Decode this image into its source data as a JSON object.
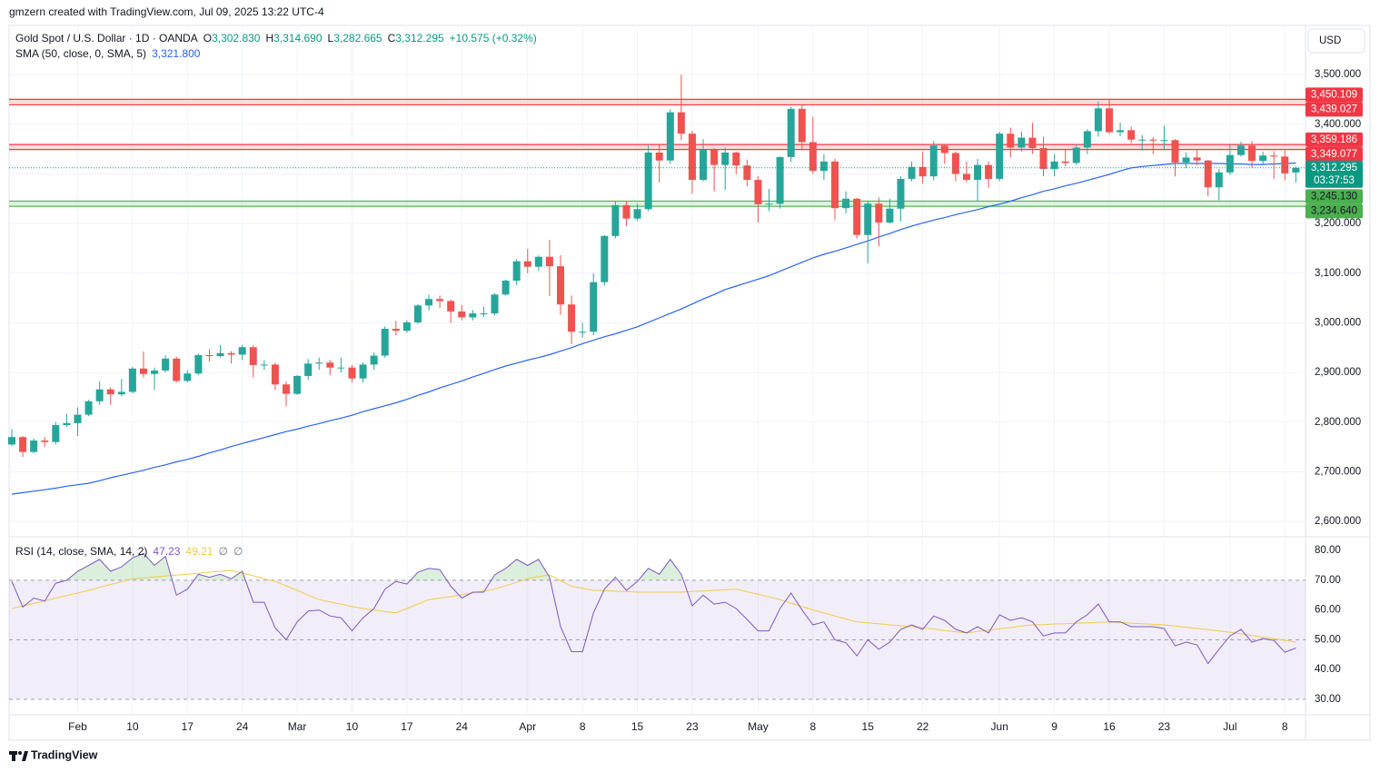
{
  "header": "gmzern created with TradingView.com, Jul 09, 2025 13:22 UTC-4",
  "footer": "TradingView",
  "chart_data": {
    "type": "candlestick",
    "legend": {
      "symbol": "Gold Spot / U.S. Dollar · 1D · OANDA",
      "ohlc": [
        {
          "key": "O",
          "value": "3,302.830"
        },
        {
          "key": "H",
          "value": "3,314.690"
        },
        {
          "key": "L",
          "value": "3,282.665"
        },
        {
          "key": "C",
          "value": "3,312.295"
        }
      ],
      "change": "+10.575 (+0.32%)"
    },
    "currency": "USD",
    "x": [
      null,
      null,
      null,
      null,
      null,
      null,
      "Feb",
      null,
      null,
      null,
      null,
      "10",
      null,
      null,
      null,
      null,
      "17",
      null,
      null,
      null,
      null,
      "24",
      null,
      null,
      null,
      null,
      "Mar",
      null,
      null,
      null,
      null,
      "10",
      null,
      null,
      null,
      null,
      "17",
      null,
      null,
      null,
      null,
      "24",
      null,
      null,
      null,
      null,
      null,
      "Apr",
      null,
      null,
      null,
      null,
      "8",
      null,
      null,
      null,
      null,
      "15",
      null,
      null,
      null,
      null,
      "23",
      null,
      null,
      null,
      null,
      null,
      "May",
      null,
      null,
      null,
      null,
      "8",
      null,
      null,
      null,
      null,
      "15",
      null,
      null,
      null,
      null,
      "22",
      null,
      null,
      null,
      null,
      null,
      null,
      "Jun",
      null,
      null,
      null,
      null,
      "9",
      null,
      null,
      null,
      null,
      "16",
      null,
      null,
      null,
      null,
      "23",
      null,
      null,
      null,
      null,
      null,
      "Jul",
      null,
      null,
      null,
      null,
      "8",
      null
    ],
    "open": [
      2755,
      2770,
      2740,
      2763,
      2760,
      2794,
      2798,
      2815,
      2842,
      2866,
      2856,
      2861,
      2908,
      2897,
      2904,
      2928,
      2883,
      2898,
      2935,
      2933,
      2939,
      2936,
      2951,
      2915,
      2916,
      2876,
      2857,
      2893,
      2918,
      2920,
      2910,
      2910,
      2888,
      2916,
      2934,
      2988,
      2984,
      3001,
      3035,
      3048,
      3044,
      3023,
      3011,
      3019,
      3019,
      3057,
      3085,
      3124,
      3113,
      3133,
      3114,
      3037,
      2982,
      2982,
      3082,
      3175,
      3237,
      3210,
      3229,
      3343,
      3327,
      3424,
      3381,
      3288,
      3349,
      3318,
      3343,
      3317,
      3288,
      3239,
      3240,
      3334,
      3431,
      3364,
      3306,
      3325,
      3231,
      3250,
      3177,
      3240,
      3202,
      3230,
      3290,
      3314,
      3295,
      3357,
      3342,
      3300,
      3288,
      3318,
      3290,
      3381,
      3353,
      3373,
      3352,
      3310,
      3325,
      3322,
      3353,
      3386,
      3432,
      3384,
      3388,
      3369,
      3369,
      3367,
      3368,
      3323,
      3333,
      3327,
      3273,
      3303,
      3338,
      3357,
      3326,
      3337,
      3335,
      3302.83
    ],
    "high": [
      2786,
      2772,
      2767,
      2770,
      2800,
      2817,
      2830,
      2845,
      2882,
      2870,
      2887,
      2911,
      2942,
      2910,
      2935,
      2932,
      2905,
      2938,
      2947,
      2955,
      2943,
      2956,
      2955,
      2925,
      2920,
      2882,
      2895,
      2927,
      2930,
      2925,
      2930,
      2915,
      2920,
      2940,
      2993,
      3004,
      3005,
      3038,
      3057,
      3055,
      3047,
      3036,
      3026,
      3033,
      3060,
      3087,
      3128,
      3149,
      3136,
      3167,
      3136,
      3055,
      3000,
      3100,
      3177,
      3245,
      3245,
      3240,
      3357,
      3358,
      3430,
      3500,
      3387,
      3370,
      3352,
      3353,
      3345,
      3329,
      3295,
      3270,
      3335,
      3435,
      3438,
      3415,
      3340,
      3330,
      3265,
      3252,
      3245,
      3253,
      3250,
      3295,
      3325,
      3345,
      3366,
      3360,
      3345,
      3325,
      3330,
      3325,
      3385,
      3393,
      3385,
      3403,
      3375,
      3340,
      3350,
      3360,
      3390,
      3446,
      3452,
      3403,
      3395,
      3378,
      3374,
      3397,
      3370,
      3343,
      3350,
      3328,
      3310,
      3358,
      3365,
      3366,
      3345,
      3346,
      3347,
      3314.69
    ],
    "low": [
      2752,
      2730,
      2737,
      2750,
      2755,
      2790,
      2772,
      2812,
      2835,
      2835,
      2852,
      2858,
      2890,
      2865,
      2900,
      2880,
      2880,
      2895,
      2922,
      2930,
      2918,
      2925,
      2890,
      2905,
      2865,
      2832,
      2855,
      2885,
      2905,
      2895,
      2900,
      2880,
      2880,
      2905,
      2930,
      2975,
      2980,
      2998,
      3025,
      3030,
      3000,
      3005,
      3005,
      3012,
      3015,
      3055,
      3076,
      3100,
      3105,
      3054,
      3016,
      2957,
      2970,
      2975,
      3075,
      3170,
      3195,
      3205,
      3225,
      3283,
      3320,
      3368,
      3260,
      3285,
      3265,
      3268,
      3300,
      3275,
      3202,
      3225,
      3230,
      3324,
      3350,
      3300,
      3288,
      3207,
      3220,
      3170,
      3120,
      3154,
      3200,
      3205,
      3285,
      3280,
      3287,
      3320,
      3285,
      3283,
      3245,
      3272,
      3285,
      3333,
      3345,
      3340,
      3295,
      3295,
      3315,
      3318,
      3340,
      3375,
      3380,
      3376,
      3362,
      3347,
      3340,
      3348,
      3295,
      3312,
      3317,
      3255,
      3247,
      3298,
      3335,
      3312,
      3320,
      3290,
      3287,
      3282.665
    ],
    "close": [
      2770,
      2740,
      2763,
      2760,
      2794,
      2798,
      2815,
      2842,
      2866,
      2856,
      2861,
      2908,
      2897,
      2904,
      2928,
      2883,
      2898,
      2935,
      2933,
      2939,
      2936,
      2951,
      2915,
      2916,
      2876,
      2857,
      2893,
      2918,
      2920,
      2910,
      2910,
      2888,
      2916,
      2934,
      2988,
      2984,
      3001,
      3035,
      3048,
      3044,
      3023,
      3011,
      3019,
      3019,
      3057,
      3085,
      3124,
      3113,
      3133,
      3114,
      3037,
      2982,
      2982,
      3082,
      3175,
      3237,
      3210,
      3229,
      3343,
      3327,
      3424,
      3381,
      3288,
      3349,
      3318,
      3343,
      3317,
      3288,
      3239,
      3240,
      3334,
      3431,
      3364,
      3306,
      3325,
      3231,
      3250,
      3177,
      3240,
      3202,
      3230,
      3290,
      3314,
      3295,
      3357,
      3342,
      3300,
      3288,
      3318,
      3290,
      3381,
      3353,
      3373,
      3352,
      3310,
      3325,
      3322,
      3353,
      3386,
      3432,
      3384,
      3388,
      3369,
      3369,
      3367,
      3368,
      3323,
      3333,
      3327,
      3273,
      3303,
      3338,
      3357,
      3326,
      3337,
      3335,
      3301,
      3312.295
    ],
    "up_color": "#26a69a",
    "down_color": "#ef5350",
    "ylim": [
      2571,
      3599
    ],
    "yticks": [
      {
        "value": 2600,
        "label": "2,600.000"
      },
      {
        "value": 2700,
        "label": "2,700.000"
      },
      {
        "value": 2800,
        "label": "2,800.000"
      },
      {
        "value": 2900,
        "label": "2,900.000"
      },
      {
        "value": 3000,
        "label": "3,000.000"
      },
      {
        "value": 3100,
        "label": "3,100.000"
      },
      {
        "value": 3200,
        "label": "3,200.000"
      },
      {
        "value": 3300,
        "label": "3,300.000"
      },
      {
        "value": 3400,
        "label": "3,400.000"
      },
      {
        "value": 3500,
        "label": "3,500.000"
      }
    ],
    "grid": true,
    "sma": {
      "name": "SMA (50, close, 0, SMA, 5)",
      "value_label": "3,321.800",
      "color": "#2962ff",
      "values": [
        2655,
        2658,
        2661,
        2664,
        2667,
        2671,
        2674,
        2677,
        2682,
        2688,
        2693,
        2698,
        2703,
        2709,
        2714,
        2720,
        2725,
        2731,
        2738,
        2744,
        2751,
        2757,
        2763,
        2769,
        2775,
        2781,
        2786,
        2792,
        2797,
        2803,
        2808,
        2814,
        2821,
        2827,
        2833,
        2839,
        2846,
        2854,
        2861,
        2869,
        2876,
        2883,
        2891,
        2898,
        2906,
        2913,
        2919,
        2925,
        2930,
        2936,
        2943,
        2950,
        2958,
        2965,
        2972,
        2978,
        2985,
        2992,
        3001,
        3010,
        3019,
        3028,
        3038,
        3048,
        3057,
        3067,
        3074,
        3081,
        3088,
        3095,
        3104,
        3113,
        3122,
        3131,
        3138,
        3144,
        3151,
        3158,
        3165,
        3173,
        3180,
        3188,
        3195,
        3201,
        3207,
        3212,
        3218,
        3223,
        3228,
        3234,
        3239,
        3245,
        3252,
        3258,
        3265,
        3270,
        3276,
        3281,
        3287,
        3293,
        3299,
        3306,
        3312,
        3315,
        3317,
        3319,
        3321,
        3321,
        3321,
        3321,
        3321,
        3320,
        3320,
        3319,
        3319,
        3320,
        3321,
        3321.8
      ]
    },
    "zones": [
      {
        "top": {
          "value": 3450.109,
          "label": "3,450.109"
        },
        "bottom": {
          "value": 3439.027,
          "label": "3,439.027"
        },
        "color": "#f23645",
        "text_color": "#ffffff"
      },
      {
        "top": {
          "value": 3359.186,
          "label": "3,359.186"
        },
        "bottom": {
          "value": 3349.077,
          "label": "3,349.077"
        },
        "color": "#f23645",
        "text_color": "#ffffff"
      },
      {
        "top": {
          "value": 3245.13,
          "label": "3,245.130"
        },
        "bottom": {
          "value": 3234.64,
          "label": "3,234.640"
        },
        "color": "#4caf50",
        "text_color": "#131722"
      }
    ],
    "last_price": {
      "value": 3312.295,
      "label": "3,312.295",
      "countdown": "03:37:53",
      "color": "#089981"
    },
    "rsi": {
      "name": "RSI (14, close, SMA, 14, 2)",
      "value_label": "47.23",
      "color": "#7e57c2",
      "ma_label": "49.21",
      "ma_color": "#f2c94c",
      "extra_labels": [
        "∅",
        "∅"
      ],
      "values": [
        69.6,
        61,
        64,
        63,
        69,
        70,
        73,
        75,
        77,
        73,
        74.5,
        77.5,
        79,
        75,
        78,
        65,
        67,
        72,
        71,
        72,
        70.5,
        73,
        62.6,
        62.6,
        54,
        50,
        56,
        59.6,
        60,
        58,
        57.4,
        53,
        57.4,
        60.5,
        67,
        69.6,
        68.7,
        72.7,
        74,
        73.6,
        68,
        64,
        66,
        66,
        71.8,
        74,
        77,
        75,
        77,
        71,
        54.4,
        46,
        46,
        59,
        67,
        71,
        66.6,
        69.6,
        74,
        72,
        77,
        72,
        61.4,
        65,
        62,
        62.6,
        60.5,
        56.8,
        53,
        53,
        60.5,
        65.7,
        60,
        55,
        56,
        50,
        49,
        44.6,
        50,
        46.8,
        49.2,
        53.5,
        55,
        53.5,
        58,
        56.5,
        53.5,
        52.3,
        54.4,
        52.3,
        58.4,
        56.5,
        57.4,
        56,
        51.3,
        52.3,
        52.3,
        56,
        58.4,
        62,
        56,
        56,
        54.4,
        54.4,
        54.4,
        53.8,
        48,
        49.2,
        48.3,
        42,
        46.8,
        51.3,
        53.5,
        49.2,
        50.4,
        49.8,
        45.8,
        47.23
      ],
      "ma_values": [
        60.5,
        61.4,
        62.2,
        63.1,
        64,
        64.9,
        65.7,
        66.6,
        67.6,
        68.6,
        69.5,
        70.5,
        70.8,
        71.1,
        71.4,
        71.7,
        72,
        72.3,
        72.7,
        73,
        73.3,
        72.4,
        71.5,
        70.5,
        69.6,
        68.1,
        66.6,
        65,
        63.5,
        62.7,
        62,
        61.2,
        60.5,
        60,
        59.5,
        59,
        60.5,
        62,
        63.5,
        64,
        64.5,
        65.1,
        65.8,
        66.4,
        67,
        68.2,
        69.3,
        70.5,
        71.2,
        71.8,
        69.9,
        68,
        67.3,
        66.6,
        66.5,
        66.3,
        66.2,
        66,
        66,
        66,
        66,
        66,
        66.2,
        66.4,
        66.6,
        66.8,
        67,
        66.1,
        65.3,
        64.4,
        63.5,
        62.3,
        61.2,
        60,
        59,
        58,
        57,
        56,
        55.7,
        55.4,
        55,
        54.7,
        54.4,
        54,
        53.6,
        53.1,
        52.7,
        52.3,
        52.8,
        53.2,
        53.7,
        54.1,
        54.6,
        55,
        55.1,
        55.3,
        55.4,
        55.6,
        55.7,
        55.9,
        56,
        55.8,
        55.6,
        55.4,
        55.2,
        55,
        54.6,
        54.2,
        53.8,
        53.4,
        53,
        52.5,
        52,
        51.4,
        50.9,
        50.4,
        49.8,
        49.21
      ],
      "ylim": [
        24.8,
        84.3
      ],
      "yticks": [
        {
          "value": 30,
          "label": "30.00"
        },
        {
          "value": 40,
          "label": "40.00"
        },
        {
          "value": 50,
          "label": "50.00"
        },
        {
          "value": 60,
          "label": "60.00"
        },
        {
          "value": 70,
          "label": "70.00"
        },
        {
          "value": 80,
          "label": "80.00"
        }
      ],
      "levels": [
        70,
        50,
        30
      ]
    }
  }
}
